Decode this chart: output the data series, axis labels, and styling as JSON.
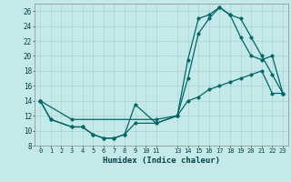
{
  "xlabel": "Humidex (Indice chaleur)",
  "bg_color": "#c5e8e8",
  "line_color": "#006666",
  "grid_color": "#a8d4d4",
  "xlim": [
    -0.5,
    23.5
  ],
  "ylim": [
    8,
    27
  ],
  "yticks": [
    8,
    10,
    12,
    14,
    16,
    18,
    20,
    22,
    24,
    26
  ],
  "line1_x": [
    0,
    1,
    3,
    4,
    5,
    6,
    7,
    8,
    9,
    11,
    13,
    14,
    15,
    16,
    17,
    18,
    19,
    20,
    21,
    22,
    23
  ],
  "line1_y": [
    14,
    11.5,
    10.5,
    10.5,
    9.5,
    9.0,
    9.0,
    9.5,
    13.5,
    11.0,
    12.0,
    19.5,
    25.0,
    25.5,
    26.5,
    25.5,
    25.0,
    22.5,
    20.0,
    17.5,
    15.0
  ],
  "line2_x": [
    0,
    1,
    3,
    4,
    5,
    6,
    7,
    8,
    9,
    11,
    13,
    14,
    15,
    16,
    17,
    18,
    19,
    20,
    21,
    22,
    23
  ],
  "line2_y": [
    14,
    11.5,
    10.5,
    10.5,
    9.5,
    9.0,
    9.0,
    9.5,
    11.0,
    11.0,
    12.0,
    17.0,
    23.0,
    25.0,
    26.5,
    25.5,
    22.5,
    20.0,
    19.5,
    20.0,
    15.0
  ],
  "line3_x": [
    0,
    3,
    11,
    13,
    14,
    15,
    16,
    17,
    18,
    19,
    20,
    21,
    22,
    23
  ],
  "line3_y": [
    14,
    11.5,
    11.5,
    12.0,
    14.0,
    14.5,
    15.5,
    16.0,
    16.5,
    17.0,
    17.5,
    18.0,
    15.0,
    15.0
  ],
  "xtick_positions": [
    0,
    1,
    2,
    3,
    4,
    5,
    6,
    7,
    8,
    9,
    10,
    11,
    13,
    14,
    15,
    16,
    17,
    18,
    19,
    20,
    21,
    22,
    23
  ],
  "xtick_labels": [
    "0",
    "1",
    "2",
    "3",
    "4",
    "5",
    "6",
    "7",
    "8",
    "9",
    "10",
    "11",
    "13",
    "14",
    "15",
    "16",
    "17",
    "18",
    "19",
    "20",
    "21",
    "22",
    "23"
  ]
}
